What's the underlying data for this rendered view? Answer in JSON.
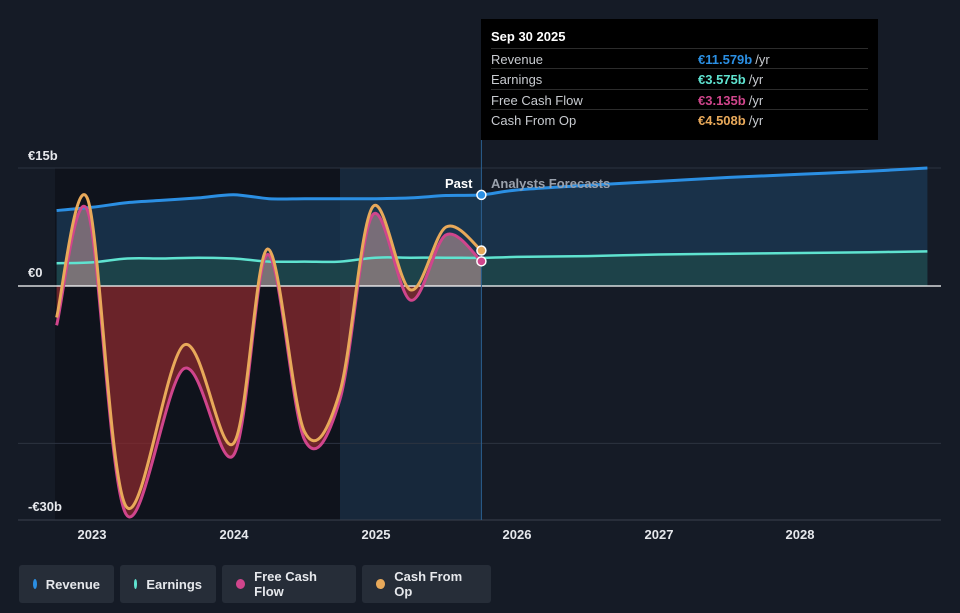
{
  "chart_data": {
    "type": "area",
    "x_ticks": [
      "2023",
      "2024",
      "2025",
      "2026",
      "2027",
      "2028"
    ],
    "y_ticks": [
      {
        "label": "€15b",
        "value": 15
      },
      {
        "label": "€0",
        "value": 0
      },
      {
        "label": "-€30b",
        "value": -30
      }
    ],
    "ylim": [
      -30,
      15
    ],
    "xlim": [
      2022.75,
      2028.9
    ],
    "divider_x": 2025.75,
    "section_labels": {
      "past": "Past",
      "forecast": "Analysts Forecasts"
    },
    "series": [
      {
        "name": "Revenue",
        "color": "#2b8fe3",
        "x": [
          2022.75,
          2023.0,
          2023.25,
          2023.5,
          2023.75,
          2024.0,
          2024.25,
          2024.5,
          2024.75,
          2025.0,
          2025.25,
          2025.5,
          2025.75,
          2026.0,
          2026.5,
          2027.0,
          2027.5,
          2028.0,
          2028.5,
          2028.9
        ],
        "y": [
          9.6,
          10.0,
          10.6,
          10.9,
          11.2,
          11.6,
          11.1,
          11.1,
          11.1,
          11.1,
          11.2,
          11.5,
          11.579,
          12.2,
          12.8,
          13.3,
          13.8,
          14.2,
          14.6,
          15.0
        ]
      },
      {
        "name": "Earnings",
        "color": "#5fe3d0",
        "x": [
          2022.75,
          2023.0,
          2023.25,
          2023.5,
          2023.75,
          2024.0,
          2024.25,
          2024.5,
          2024.75,
          2025.0,
          2025.25,
          2025.5,
          2025.75,
          2026.0,
          2026.5,
          2027.0,
          2027.5,
          2028.0,
          2028.5,
          2028.9
        ],
        "y": [
          2.9,
          3.0,
          3.5,
          3.5,
          3.6,
          3.5,
          3.1,
          3.1,
          3.1,
          3.6,
          3.6,
          3.6,
          3.575,
          3.7,
          3.8,
          4.0,
          4.1,
          4.2,
          4.3,
          4.4
        ]
      },
      {
        "name": "Free Cash Flow",
        "color": "#d0458c",
        "x": [
          2022.75,
          2022.97,
          2023.24,
          2023.65,
          2024.0,
          2024.24,
          2024.5,
          2024.75,
          2024.98,
          2025.25,
          2025.5,
          2025.75
        ],
        "y": [
          -5.0,
          9.5,
          -29.0,
          -10.5,
          -21.5,
          4.0,
          -19.5,
          -14.5,
          9.0,
          -1.8,
          6.5,
          3.135
        ]
      },
      {
        "name": "Cash From Op",
        "color": "#e8a95a",
        "x": [
          2022.75,
          2022.97,
          2023.24,
          2023.65,
          2024.0,
          2024.24,
          2024.5,
          2024.75,
          2024.98,
          2025.25,
          2025.5,
          2025.75
        ],
        "y": [
          -4.0,
          11.0,
          -28.0,
          -7.5,
          -20.0,
          4.7,
          -18.5,
          -13.5,
          10.0,
          -0.5,
          7.5,
          4.508
        ]
      }
    ],
    "tooltip": {
      "title": "Sep 30 2025",
      "rows": [
        {
          "name": "Revenue",
          "value": "€11.579b",
          "unit": "/yr",
          "color": "#2b8fe3"
        },
        {
          "name": "Earnings",
          "value": "€3.575b",
          "unit": "/yr",
          "color": "#5fe3d0"
        },
        {
          "name": "Free Cash Flow",
          "value": "€3.135b",
          "unit": "/yr",
          "color": "#d0458c"
        },
        {
          "name": "Cash From Op",
          "value": "€4.508b",
          "unit": "/yr",
          "color": "#e8a95a"
        }
      ]
    },
    "legend": [
      "Revenue",
      "Earnings",
      "Free Cash Flow",
      "Cash From Op"
    ]
  }
}
